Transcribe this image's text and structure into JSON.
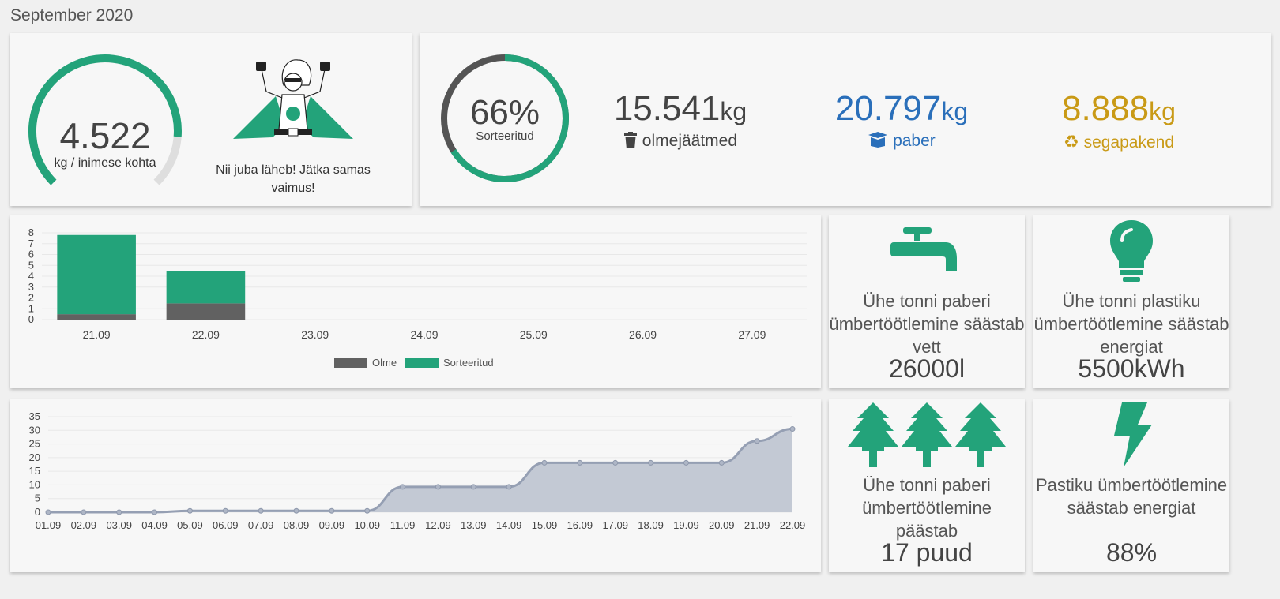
{
  "header": {
    "title": "September 2020"
  },
  "gauge": {
    "value": "4.522",
    "unit": "kg / inimese kohta",
    "fill_fraction": 0.85
  },
  "hero": {
    "message": "Nii juba läheb! Jätka samas vaimus!"
  },
  "sorting": {
    "percent_label": "66%",
    "percent_value": 66,
    "caption": "Sorteeritud",
    "stats": [
      {
        "value": "15.541",
        "unit": "kg",
        "label": "olmejäätmed",
        "icon": "trash-icon",
        "color": "#444444"
      },
      {
        "value": "20.797",
        "unit": "kg",
        "label": "paber",
        "icon": "box-icon",
        "color": "#2a6fba"
      },
      {
        "value": "8.888",
        "unit": "kg",
        "label": "segapakend",
        "icon": "recycle-icon",
        "color": "#c99a16"
      }
    ]
  },
  "colors": {
    "accent": "#23a37a",
    "dark": "#616161",
    "area": "#9aa3b5"
  },
  "impact": [
    {
      "icon": "faucet-icon",
      "text": "Ühe tonni paberi ümbertöötlemine säästab vett",
      "value": "26000l"
    },
    {
      "icon": "lightbulb-icon",
      "text": "Ühe tonni plastiku ümbertöötlemine säästab energiat",
      "value": "5500kWh"
    },
    {
      "icon": "trees-icon",
      "text": "Ühe tonni paberi ümbertöötlemine päästab",
      "value": "17 puud"
    },
    {
      "icon": "lightning-icon",
      "text": "Pastiku ümbertöötlemine säästab energiat",
      "value": "88%"
    }
  ],
  "chart_data": [
    {
      "type": "bar",
      "categories": [
        "21.09",
        "22.09",
        "23.09",
        "24.09",
        "25.09",
        "26.09",
        "27.09"
      ],
      "series": [
        {
          "name": "Olme",
          "values": [
            0.5,
            1.5,
            0,
            0,
            0,
            0,
            0
          ],
          "color": "#616161"
        },
        {
          "name": "Sorteeritud",
          "values": [
            7.3,
            3.0,
            0,
            0,
            0,
            0,
            0
          ],
          "color": "#23a37a"
        }
      ],
      "stacked": true,
      "yticks": [
        "0",
        "1",
        "2",
        "3",
        "4",
        "5",
        "6",
        "7",
        "8"
      ],
      "ylim": [
        0,
        8
      ],
      "legend": "bottom"
    },
    {
      "type": "area",
      "x": [
        "01.09",
        "02.09",
        "03.09",
        "04.09",
        "05.09",
        "06.09",
        "07.09",
        "08.09",
        "09.09",
        "10.09",
        "11.09",
        "12.09",
        "13.09",
        "14.09",
        "15.09",
        "16.09",
        "17.09",
        "18.09",
        "19.09",
        "20.09",
        "21.09",
        "22.09"
      ],
      "values": [
        0,
        0,
        0,
        0,
        0.5,
        0.5,
        0.5,
        0.5,
        0.5,
        0.5,
        9.3,
        9.3,
        9.3,
        9.3,
        18.1,
        18.1,
        18.1,
        18.1,
        18.1,
        18.1,
        26.1,
        30.5
      ],
      "yticks": [
        "0",
        "5",
        "10",
        "15",
        "20",
        "25",
        "30",
        "35"
      ],
      "ylim": [
        0,
        35
      ]
    }
  ]
}
